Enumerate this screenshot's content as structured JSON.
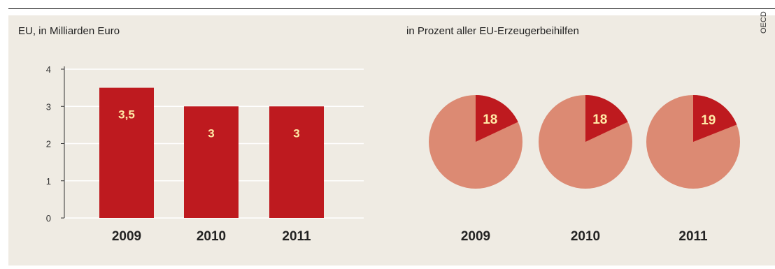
{
  "source_label": "OECD",
  "bar_panel": {
    "title": "EU, in Milliarden Euro"
  },
  "pie_panel": {
    "title": "in Prozent aller EU-Erzeugerbeihilfen"
  },
  "colors": {
    "bar": "#be1a1f",
    "slice": "#be1a1f",
    "pie_rest": "#dc8a73",
    "grid": "#ffffff",
    "background": "#efebe3",
    "label_on_red": "#ffe9a6"
  },
  "chart_data": [
    {
      "type": "bar",
      "categories": [
        "2009",
        "2010",
        "2011"
      ],
      "values": [
        3.5,
        3,
        3
      ],
      "data_labels": [
        "3,5",
        "3",
        "3"
      ],
      "ylim": [
        0,
        4
      ],
      "yticks": [
        "0",
        "1",
        "2",
        "3",
        "4"
      ],
      "title": "EU, in Milliarden Euro",
      "xlabel": "",
      "ylabel": "",
      "grid": true
    },
    {
      "type": "pie",
      "title": "in Prozent aller EU-Erzeugerbeihilfen",
      "pies": [
        {
          "label": "2009",
          "value": 18,
          "value_label": "18"
        },
        {
          "label": "2010",
          "value": 18,
          "value_label": "18"
        },
        {
          "label": "2011",
          "value": 19,
          "value_label": "19"
        }
      ]
    }
  ]
}
